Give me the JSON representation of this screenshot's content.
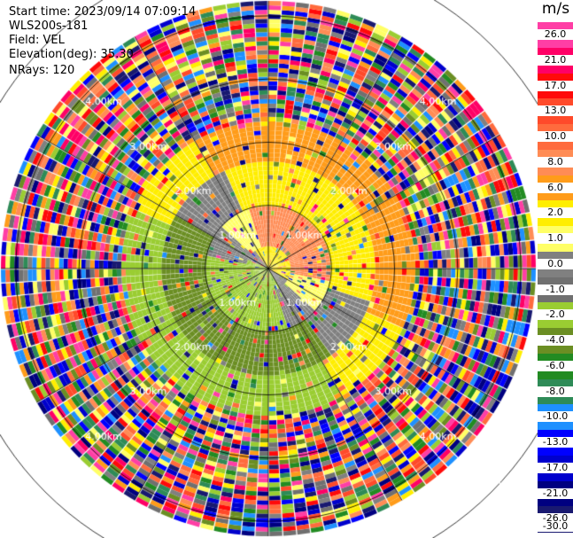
{
  "info": {
    "start_time": "Start time: 2023/09/14 07:09:14",
    "instrument": "WLS200s-181",
    "field": "Field: VEL",
    "elevation": "Elevation(deg): 35.30",
    "nrays": "NRays: 120"
  },
  "chart_data": {
    "type": "heatmap",
    "projection": "polar-ppi",
    "range_ring_labels_km": [
      "1.00km",
      "2.00km",
      "3.00km",
      "4.00km",
      "5.00km"
    ],
    "range_rings_km": [
      1,
      2,
      3,
      4,
      5
    ],
    "max_range_km": 5.0,
    "n_rays": 120,
    "grid": true,
    "colorbar": {
      "unit": "m/s",
      "placement": "right",
      "ticks": [
        "26.0",
        "21.0",
        "17.0",
        "13.0",
        "10.0",
        "8.0",
        "6.0",
        "2.0",
        "1.0",
        "0.0",
        "-1.0",
        "-2.0",
        "-4.0",
        "-6.0",
        "-8.0",
        "-10.0",
        "-13.0",
        "-17.0",
        "-21.0",
        "-26.0",
        "-30.0"
      ],
      "colors": [
        "#ff3ea5",
        "#ff0066",
        "#ff0a0a",
        "#ff4a2a",
        "#ff6b3d",
        "#ff8c55",
        "#ff9c1a",
        "#ffee00",
        "#ffff66",
        "#808080",
        "#707070",
        "#9acd32",
        "#6b8e23",
        "#228b22",
        "#2e8b57",
        "#1e90ff",
        "#0000ff",
        "#0000cd",
        "#000080",
        "#191970"
      ]
    }
  }
}
